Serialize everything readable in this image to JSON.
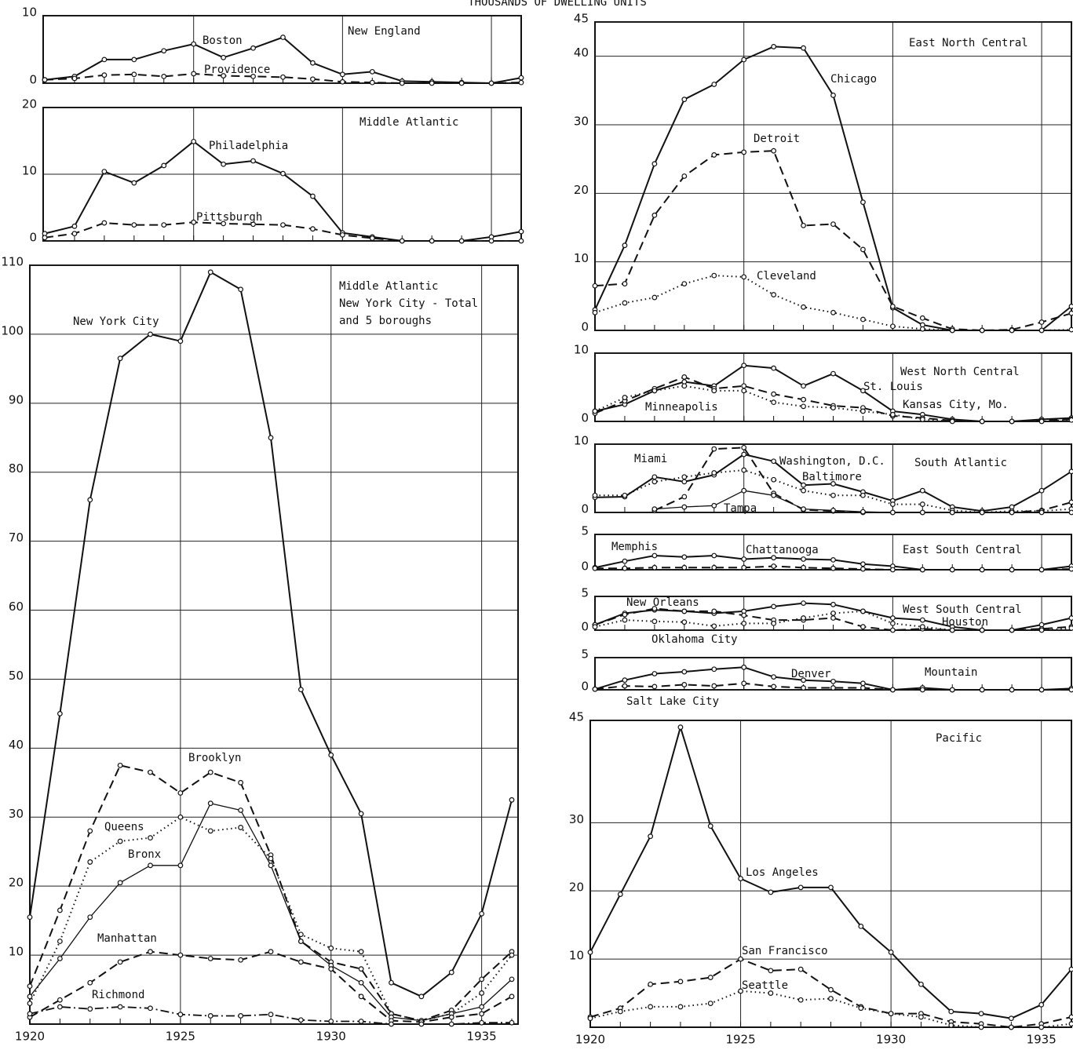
{
  "title": "THOUSANDS OF DWELLING UNITS",
  "chart_data": [
    {
      "type": "line",
      "title": [
        "New England"
      ],
      "xlim": [
        1920,
        1936
      ],
      "xticks": [
        1920,
        1925,
        1930,
        1935
      ],
      "xtick_labels": false,
      "ylim": [
        0,
        10
      ],
      "yticks": [
        0,
        10
      ],
      "grid": true,
      "x": [
        1920,
        1921,
        1922,
        1923,
        1924,
        1925,
        1926,
        1927,
        1928,
        1929,
        1930,
        1931,
        1932,
        1933,
        1934,
        1935,
        1936
      ],
      "series": [
        {
          "name": "Boston",
          "color": "#111",
          "style": "solid",
          "values": [
            0.5,
            1,
            3.5,
            3.5,
            4.8,
            5.8,
            3.8,
            5.2,
            6.8,
            3,
            1.3,
            1.7,
            0.3,
            0.2,
            0.1,
            0,
            0.8
          ]
        },
        {
          "name": "Providence",
          "color": "#111",
          "style": "dashed",
          "values": [
            0.5,
            0.7,
            1.2,
            1.3,
            1,
            1.4,
            1.1,
            1,
            0.9,
            0.6,
            0.2,
            0.1,
            0,
            0,
            0,
            0,
            0.1
          ]
        }
      ]
    },
    {
      "type": "line",
      "title": [
        "Middle Atlantic"
      ],
      "xlim": [
        1920,
        1936
      ],
      "xticks": [
        1920,
        1925,
        1930,
        1935
      ],
      "xtick_labels": false,
      "ylim": [
        0,
        20
      ],
      "yticks": [
        0,
        10,
        20
      ],
      "grid": true,
      "x": [
        1920,
        1921,
        1922,
        1923,
        1924,
        1925,
        1926,
        1927,
        1928,
        1929,
        1930,
        1931,
        1932,
        1933,
        1934,
        1935,
        1936
      ],
      "series": [
        {
          "name": "Philadelphia",
          "color": "#111",
          "style": "solid",
          "values": [
            1.1,
            2.2,
            10.4,
            8.7,
            11.3,
            14.9,
            11.5,
            12,
            10.1,
            6.7,
            1.2,
            0.6,
            0,
            0,
            0,
            0.6,
            1.4
          ]
        },
        {
          "name": "Pittsburgh",
          "color": "#111",
          "style": "dashed",
          "values": [
            0.5,
            1.1,
            2.7,
            2.4,
            2.4,
            2.8,
            2.6,
            2.5,
            2.4,
            1.8,
            0.9,
            0.4,
            0,
            0,
            0,
            0,
            0
          ]
        }
      ]
    },
    {
      "type": "line",
      "title": [
        "Middle Atlantic",
        "New York City - Total",
        "and 5 boroughs"
      ],
      "xlim": [
        1920,
        1936
      ],
      "xticks": [
        1920,
        1925,
        1930,
        1935
      ],
      "xtick_labels": true,
      "ylim": [
        0,
        110
      ],
      "yticks": [
        10,
        20,
        30,
        40,
        50,
        60,
        70,
        80,
        90,
        100,
        110
      ],
      "grid": true,
      "x": [
        1920,
        1921,
        1922,
        1923,
        1924,
        1925,
        1926,
        1927,
        1928,
        1929,
        1930,
        1931,
        1932,
        1933,
        1934,
        1935,
        1936
      ],
      "series": [
        {
          "name": "New York City",
          "color": "#111",
          "style": "solid",
          "values": [
            15.5,
            45,
            76,
            96.5,
            100,
            99,
            109,
            106.5,
            85,
            48.5,
            39,
            30.5,
            6,
            4,
            7.5,
            16,
            32.5
          ]
        },
        {
          "name": "Brooklyn",
          "color": "#111",
          "style": "dashed",
          "values": [
            5.5,
            16.5,
            28,
            37.5,
            36.5,
            33.5,
            36.5,
            35,
            24.5,
            12,
            9,
            8,
            1.5,
            0.5,
            2,
            6.5,
            10.5
          ]
        },
        {
          "name": "Queens",
          "color": "#111",
          "style": "dotted",
          "values": [
            3,
            12,
            23.5,
            26.5,
            27,
            30,
            28,
            28.5,
            24,
            13,
            11,
            10.5,
            1.5,
            0.5,
            1.5,
            4.5,
            10
          ]
        },
        {
          "name": "Bronx",
          "color": "#111",
          "style": "thin",
          "values": [
            4,
            9.5,
            15.5,
            20.5,
            23,
            23,
            32,
            31,
            23,
            12,
            8.5,
            6,
            1,
            0.5,
            1.5,
            2.5,
            6.5
          ]
        },
        {
          "name": "Manhattan",
          "color": "#111",
          "style": "dashed",
          "values": [
            1,
            3.5,
            6,
            9,
            10.5,
            10,
            9.5,
            9.3,
            10.5,
            9,
            8,
            4,
            0.5,
            0.3,
            1,
            1.5,
            4
          ]
        },
        {
          "name": "Richmond",
          "color": "#111",
          "style": "dashdot",
          "values": [
            1.5,
            2.5,
            2.2,
            2.5,
            2.3,
            1.4,
            1.2,
            1.2,
            1.4,
            0.6,
            0.4,
            0.4,
            0,
            0,
            0,
            0.2,
            0.2
          ]
        }
      ]
    },
    {
      "type": "line",
      "title": [
        "East North Central"
      ],
      "xlim": [
        1920,
        1936
      ],
      "xticks": [
        1920,
        1925,
        1930,
        1935
      ],
      "xtick_labels": false,
      "ylim": [
        0,
        45
      ],
      "yticks": [
        0,
        10,
        20,
        30,
        40,
        45
      ],
      "grid": true,
      "x": [
        1920,
        1921,
        1922,
        1923,
        1924,
        1925,
        1926,
        1927,
        1928,
        1929,
        1930,
        1931,
        1932,
        1933,
        1934,
        1935,
        1936
      ],
      "series": [
        {
          "name": "Chicago",
          "color": "#111",
          "style": "solid",
          "values": [
            3,
            12.4,
            24.3,
            33.7,
            35.9,
            39.5,
            41.4,
            41.2,
            34.3,
            18.7,
            3.3,
            0.8,
            0,
            0,
            0,
            0,
            3.5
          ]
        },
        {
          "name": "Detroit",
          "color": "#111",
          "style": "dashed",
          "values": [
            6.5,
            6.8,
            16.8,
            22.5,
            25.6,
            26,
            26.2,
            15.3,
            15.5,
            11.8,
            3.5,
            1.8,
            0.2,
            0,
            0.1,
            1.2,
            2.5
          ]
        },
        {
          "name": "Cleveland",
          "color": "#111",
          "style": "dotted",
          "values": [
            2.6,
            4,
            4.8,
            6.8,
            8,
            7.8,
            5.2,
            3.4,
            2.6,
            1.6,
            0.6,
            0.2,
            0,
            0,
            0,
            0,
            0.1
          ]
        }
      ]
    },
    {
      "type": "line",
      "title": [
        "West North Central"
      ],
      "xlim": [
        1920,
        1936
      ],
      "xticks": [
        1920,
        1925,
        1930,
        1935
      ],
      "xtick_labels": false,
      "ylim": [
        0,
        10
      ],
      "yticks": [
        0,
        10
      ],
      "grid": true,
      "x": [
        1920,
        1921,
        1922,
        1923,
        1924,
        1925,
        1926,
        1927,
        1928,
        1929,
        1930,
        1931,
        1932,
        1933,
        1934,
        1935,
        1936
      ],
      "series": [
        {
          "name": "St. Louis",
          "color": "#111",
          "style": "solid",
          "values": [
            1.5,
            2.5,
            4.5,
            5.8,
            5.2,
            8.2,
            7.8,
            5.2,
            7,
            4.5,
            1.5,
            1,
            0.3,
            0,
            0,
            0.3,
            0.5
          ]
        },
        {
          "name": "Kansas City, Mo.",
          "color": "#111",
          "style": "dashed",
          "values": [
            1.2,
            3,
            4.8,
            6.5,
            4.8,
            5.2,
            4,
            3.2,
            2.3,
            2,
            0.8,
            0.5,
            0.1,
            0,
            0,
            0.1,
            0.3
          ]
        },
        {
          "name": "Minneapolis",
          "color": "#111",
          "style": "dotted",
          "values": [
            1.5,
            3.5,
            4.5,
            5.2,
            4.5,
            4.5,
            2.8,
            2.2,
            2,
            1.5,
            1,
            0.3,
            0,
            0,
            0,
            0,
            0.2
          ]
        }
      ]
    },
    {
      "type": "line",
      "title": [
        "South Atlantic"
      ],
      "xlim": [
        1920,
        1936
      ],
      "xticks": [
        1920,
        1925,
        1930,
        1935
      ],
      "xtick_labels": false,
      "ylim": [
        0,
        10
      ],
      "yticks": [
        0,
        10
      ],
      "grid": true,
      "x": [
        1920,
        1921,
        1922,
        1923,
        1924,
        1925,
        1926,
        1927,
        1928,
        1929,
        1930,
        1931,
        1932,
        1933,
        1934,
        1935,
        1936
      ],
      "series": [
        {
          "name": "Miami",
          "color": "#111",
          "style": "dashed",
          "values": [
            null,
            null,
            0.3,
            2.3,
            9.3,
            9.5,
            2.8,
            0.4,
            0.2,
            0,
            0,
            0,
            0,
            0,
            0,
            0.3,
            1.5
          ]
        },
        {
          "name": "Washington, D.C.",
          "color": "#111",
          "style": "solid",
          "values": [
            2.2,
            2.3,
            5.2,
            4.5,
            5.5,
            8.5,
            7.5,
            4,
            4.2,
            3,
            1.7,
            3.2,
            0.8,
            0.2,
            0.8,
            3.2,
            6
          ]
        },
        {
          "name": "Baltimore",
          "color": "#111",
          "style": "dotted",
          "values": [
            2.5,
            2.5,
            4.5,
            5.2,
            5.8,
            6.2,
            4.8,
            3.2,
            2.5,
            2.5,
            1.2,
            1.2,
            0.3,
            0,
            0.2,
            0.2,
            0.5
          ]
        },
        {
          "name": "Tampa",
          "color": "#111",
          "style": "thin",
          "values": [
            null,
            null,
            0.5,
            0.8,
            1,
            3.2,
            2.5,
            0.5,
            0.3,
            0.1,
            0,
            0,
            0,
            0,
            0,
            0,
            0
          ]
        }
      ]
    },
    {
      "type": "line",
      "title": [
        "East South Central"
      ],
      "xlim": [
        1920,
        1936
      ],
      "xticks": [
        1920,
        1925,
        1930,
        1935
      ],
      "xtick_labels": false,
      "ylim": [
        0,
        5
      ],
      "yticks": [
        0,
        5
      ],
      "grid": true,
      "x": [
        1920,
        1921,
        1922,
        1923,
        1924,
        1925,
        1926,
        1927,
        1928,
        1929,
        1930,
        1931,
        1932,
        1933,
        1934,
        1935,
        1936
      ],
      "series": [
        {
          "name": "Memphis",
          "color": "#111",
          "style": "solid",
          "values": [
            0.3,
            1.2,
            2,
            1.8,
            2,
            1.5,
            1.7,
            1.5,
            1.4,
            0.8,
            0.5,
            0,
            0,
            0,
            0,
            0,
            0.5
          ]
        },
        {
          "name": "Chattanooga",
          "color": "#111",
          "style": "dashed",
          "values": [
            0.2,
            0.2,
            0.3,
            0.3,
            0.3,
            0.3,
            0.5,
            0.3,
            0.2,
            0.1,
            0,
            0,
            0,
            0,
            0,
            0,
            0.1
          ]
        }
      ]
    },
    {
      "type": "line",
      "title": [
        "West South Central"
      ],
      "xlim": [
        1920,
        1936
      ],
      "xticks": [
        1920,
        1925,
        1930,
        1935
      ],
      "xtick_labels": false,
      "ylim": [
        0,
        5
      ],
      "yticks": [
        0,
        5
      ],
      "grid": true,
      "x": [
        1920,
        1921,
        1922,
        1923,
        1924,
        1925,
        1926,
        1927,
        1928,
        1929,
        1930,
        1931,
        1932,
        1933,
        1934,
        1935,
        1936
      ],
      "series": [
        {
          "name": "New Orleans",
          "color": "#111",
          "style": "solid",
          "values": [
            0.8,
            2.5,
            3,
            2.8,
            2.5,
            2.8,
            3.5,
            4,
            3.8,
            2.8,
            1.8,
            1.5,
            0.5,
            0,
            0,
            0.8,
            1.8
          ]
        },
        {
          "name": "Houston",
          "color": "#111",
          "style": "dashed",
          "values": [
            0.8,
            2.3,
            3.2,
            2.8,
            2.8,
            2.2,
            1.5,
            1.5,
            1.8,
            0.5,
            0,
            0.2,
            0,
            0,
            0,
            0.2,
            0.5
          ]
        },
        {
          "name": "Oklahoma City",
          "color": "#111",
          "style": "dotted",
          "values": [
            0.5,
            1.5,
            1.3,
            1.2,
            0.6,
            1,
            1,
            1.8,
            2.5,
            2.8,
            1,
            0.5,
            0,
            0,
            0,
            0,
            0.3
          ]
        }
      ]
    },
    {
      "type": "line",
      "title": [
        "Mountain"
      ],
      "xlim": [
        1920,
        1936
      ],
      "xticks": [
        1920,
        1925,
        1930,
        1935
      ],
      "xtick_labels": false,
      "ylim": [
        0,
        5
      ],
      "yticks": [
        0,
        5
      ],
      "grid": true,
      "x": [
        1920,
        1921,
        1922,
        1923,
        1924,
        1925,
        1926,
        1927,
        1928,
        1929,
        1930,
        1931,
        1932,
        1933,
        1934,
        1935,
        1936
      ],
      "series": [
        {
          "name": "Denver",
          "color": "#111",
          "style": "solid",
          "values": [
            0.1,
            1.5,
            2.5,
            2.8,
            3.2,
            3.5,
            2,
            1.5,
            1.3,
            1,
            0,
            0.3,
            0,
            0,
            0,
            0,
            0.2
          ]
        },
        {
          "name": "Salt Lake City",
          "color": "#111",
          "style": "dashed",
          "values": [
            0.1,
            0.6,
            0.5,
            0.8,
            0.6,
            1,
            0.5,
            0.3,
            0.3,
            0.3,
            0,
            0,
            0,
            0,
            0,
            0,
            0
          ]
        }
      ]
    },
    {
      "type": "line",
      "title": [
        "Pacific"
      ],
      "xlim": [
        1920,
        1936
      ],
      "xticks": [
        1920,
        1925,
        1930,
        1935
      ],
      "xtick_labels": true,
      "ylim": [
        0,
        45
      ],
      "yticks": [
        10,
        20,
        30,
        45
      ],
      "grid": true,
      "x": [
        1920,
        1921,
        1922,
        1923,
        1924,
        1925,
        1926,
        1927,
        1928,
        1929,
        1930,
        1931,
        1932,
        1933,
        1934,
        1935,
        1936
      ],
      "series": [
        {
          "name": "Los Angeles",
          "color": "#111",
          "style": "solid",
          "values": [
            11,
            19.5,
            28,
            44,
            29.5,
            21.8,
            19.8,
            20.5,
            20.5,
            14.8,
            11,
            6.3,
            2.3,
            2,
            1.3,
            3.3,
            8.5
          ]
        },
        {
          "name": "San Francisco",
          "color": "#111",
          "style": "dashed",
          "values": [
            1.5,
            2.8,
            6.3,
            6.7,
            7.3,
            10,
            8.3,
            8.5,
            5.5,
            3,
            2,
            2,
            0.8,
            0.5,
            0,
            0.5,
            1.5
          ]
        },
        {
          "name": "Seattle",
          "color": "#111",
          "style": "dotted",
          "values": [
            1.3,
            2.3,
            3,
            3,
            3.5,
            5.3,
            5,
            4,
            4.2,
            2.8,
            2,
            1.5,
            0.3,
            0,
            0,
            0,
            0.5
          ]
        }
      ]
    }
  ]
}
